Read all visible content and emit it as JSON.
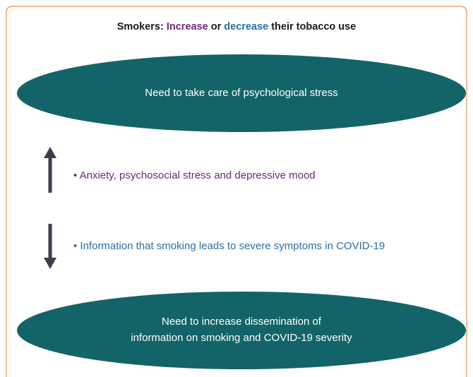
{
  "title": {
    "parts": [
      "Smokers: ",
      "Increase",
      " or ",
      "decrease",
      " their tobacco use"
    ]
  },
  "nodes": [
    {
      "label": [
        "Need to take care of psychological stress"
      ]
    },
    {
      "label": [
        "Need to increase dissemination of",
        "information on smoking and COVID-19 severity"
      ]
    }
  ],
  "factors": [
    {
      "text": "• Anxiety, psychosocial stress and depressive mood"
    },
    {
      "text": "• Information that smoking leads to severe symptoms in COVID-19"
    }
  ]
}
